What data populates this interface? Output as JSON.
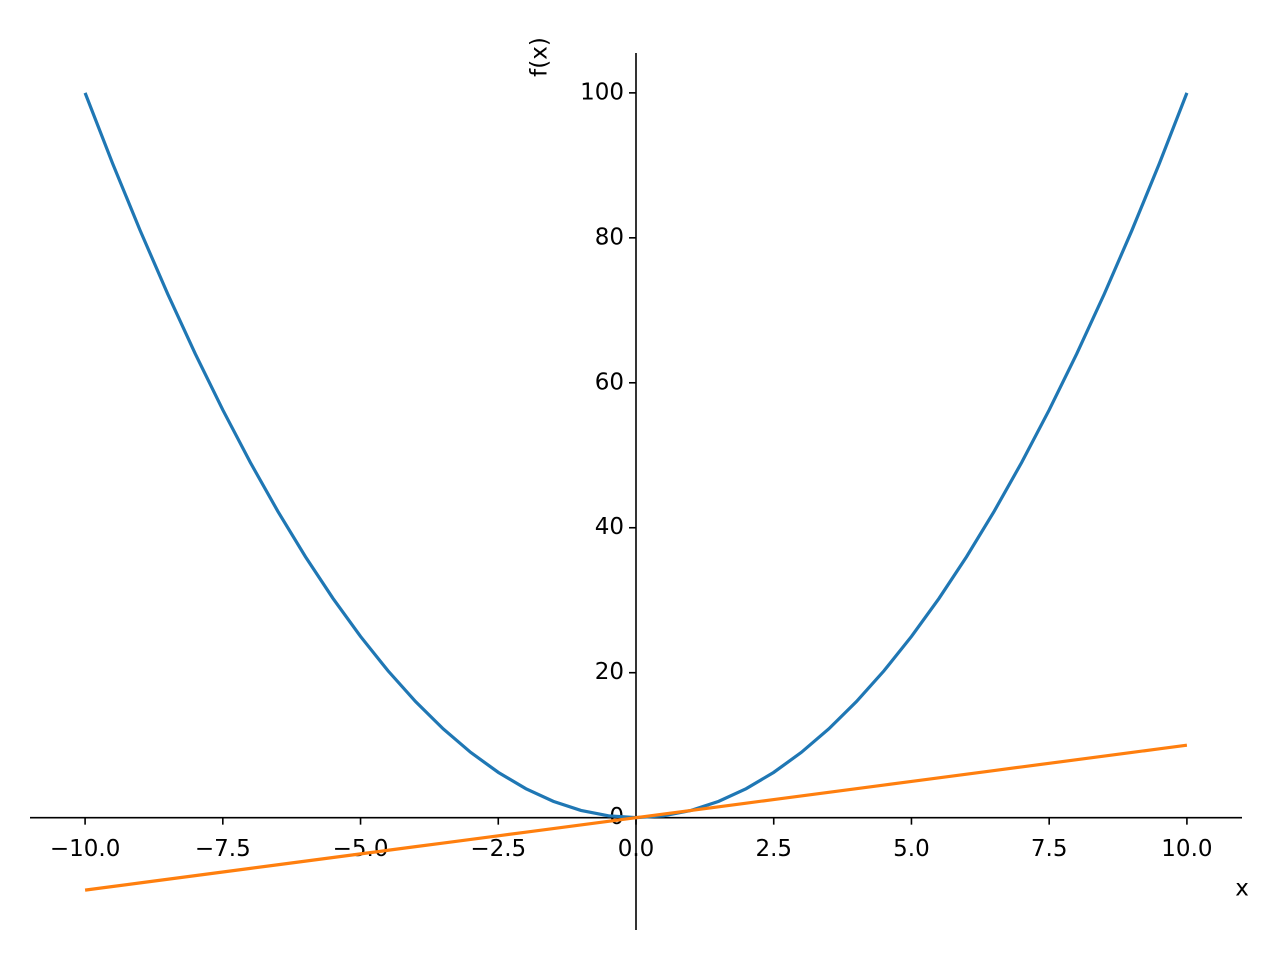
{
  "chart_data": {
    "type": "line",
    "x": [
      -10,
      -9.5,
      -9,
      -8.5,
      -8,
      -7.5,
      -7,
      -6.5,
      -6,
      -5.5,
      -5,
      -4.5,
      -4,
      -3.5,
      -3,
      -2.5,
      -2,
      -1.5,
      -1,
      -0.5,
      0,
      0.5,
      1,
      1.5,
      2,
      2.5,
      3,
      3.5,
      4,
      4.5,
      5,
      5.5,
      6,
      6.5,
      7,
      7.5,
      8,
      8.5,
      9,
      9.5,
      10
    ],
    "series": [
      {
        "color": "#1f77b4",
        "values": [
          100,
          90.25,
          81,
          72.25,
          64,
          56.25,
          49,
          42.25,
          36,
          30.25,
          25,
          20.25,
          16,
          12.25,
          9,
          6.25,
          4,
          2.25,
          1,
          0.25,
          0,
          0.25,
          1,
          2.25,
          4,
          6.25,
          9,
          12.25,
          16,
          20.25,
          25,
          30.25,
          36,
          42.25,
          49,
          56.25,
          64,
          72.25,
          81,
          90.25,
          100
        ]
      },
      {
        "color": "#ff7f0e",
        "values": [
          -10,
          -9.5,
          -9,
          -8.5,
          -8,
          -7.5,
          -7,
          -6.5,
          -6,
          -5.5,
          -5,
          -4.5,
          -4,
          -3.5,
          -3,
          -2.5,
          -2,
          -1.5,
          -1,
          -0.5,
          0,
          0.5,
          1,
          1.5,
          2,
          2.5,
          3,
          3.5,
          4,
          4.5,
          5,
          5.5,
          6,
          6.5,
          7,
          7.5,
          8,
          8.5,
          9,
          9.5,
          10
        ]
      }
    ],
    "xlabel": "x",
    "ylabel": "f(x)",
    "xlim": [
      -11,
      11
    ],
    "ylim": [
      -15.5,
      105.5
    ],
    "xticks": [
      {
        "value": -10,
        "label": "−10.0"
      },
      {
        "value": -7.5,
        "label": "−7.5"
      },
      {
        "value": -5,
        "label": "−5.0"
      },
      {
        "value": -2.5,
        "label": "−2.5"
      },
      {
        "value": 0,
        "label": "0.0"
      },
      {
        "value": 2.5,
        "label": "2.5"
      },
      {
        "value": 5,
        "label": "5.0"
      },
      {
        "value": 7.5,
        "label": "7.5"
      },
      {
        "value": 10,
        "label": "10.0"
      }
    ],
    "yticks": [
      0,
      20,
      40,
      60,
      80,
      100
    ]
  }
}
